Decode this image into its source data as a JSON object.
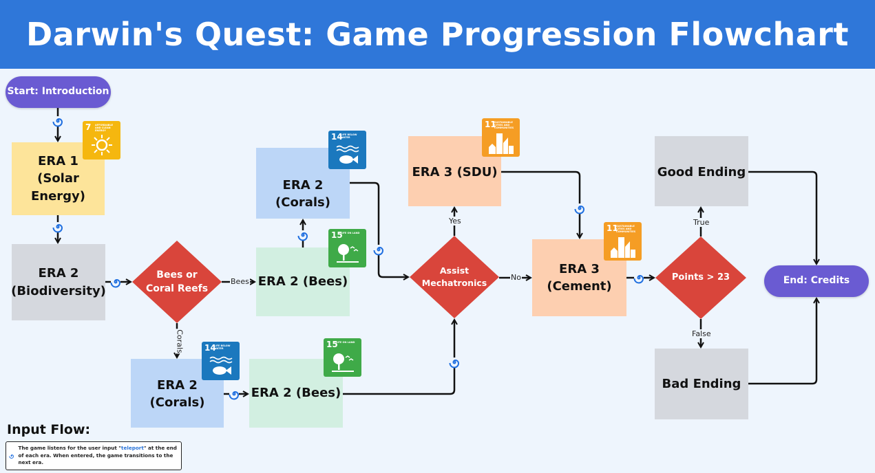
{
  "title": "Darwin's Quest: Game Progression Flowchart",
  "nodes": {
    "start": "Start: Introduction",
    "era1": "ERA 1\n(Solar Energy)",
    "era2_bio": "ERA 2\n(Biodiversity)",
    "bees_or_coral": "Bees or\nCoral Reefs",
    "era2_bees_mid": "ERA 2 (Bees)",
    "era2_corals_top": "ERA 2 (Corals)",
    "era2_corals_bottom": "ERA 2 (Corals)",
    "era2_bees_bottom": "ERA 2 (Bees)",
    "assist": "Assist\nMechatronics",
    "era3_sdu": "ERA 3 (SDU)",
    "era3_cement": "ERA 3\n(Cement)",
    "points": "Points > 23",
    "good": "Good Ending",
    "bad": "Bad Ending",
    "end": "End: Credits"
  },
  "edge_labels": {
    "bees": "Bees",
    "corals": "Corals",
    "yes": "Yes",
    "no": "No",
    "true": "True",
    "false": "False"
  },
  "sdg_badges": {
    "sdg7": {
      "num": "7",
      "label": "AFFORDABLE AND CLEAN ENERGY",
      "color": "#f5b70f"
    },
    "sdg14": {
      "num": "14",
      "label": "LIFE BELOW WATER",
      "color": "#1b78be"
    },
    "sdg15": {
      "num": "15",
      "label": "LIFE ON LAND",
      "color": "#3faa48"
    },
    "sdg11": {
      "num": "11",
      "label": "SUSTAINABLE CITIES AND COMMUNITIES",
      "color": "#f59d24"
    }
  },
  "legend": {
    "title": "Input Flow:",
    "text_before": "The game listens for the user input \"",
    "keyword": "teleport",
    "text_after": "\" at the end of each era. When entered, the game transitions to the next era.",
    "icon": "spiral-icon"
  },
  "colors": {
    "header": "#2f77d9",
    "pill": "#6a5bd2",
    "diamond": "#d9453b",
    "yellow": "#fde49a",
    "grey": "#d5d8de",
    "mint": "#d2efe1",
    "blue": "#bcd6f7",
    "peach": "#fdcfb0",
    "spiral": "#1f6fe0"
  }
}
